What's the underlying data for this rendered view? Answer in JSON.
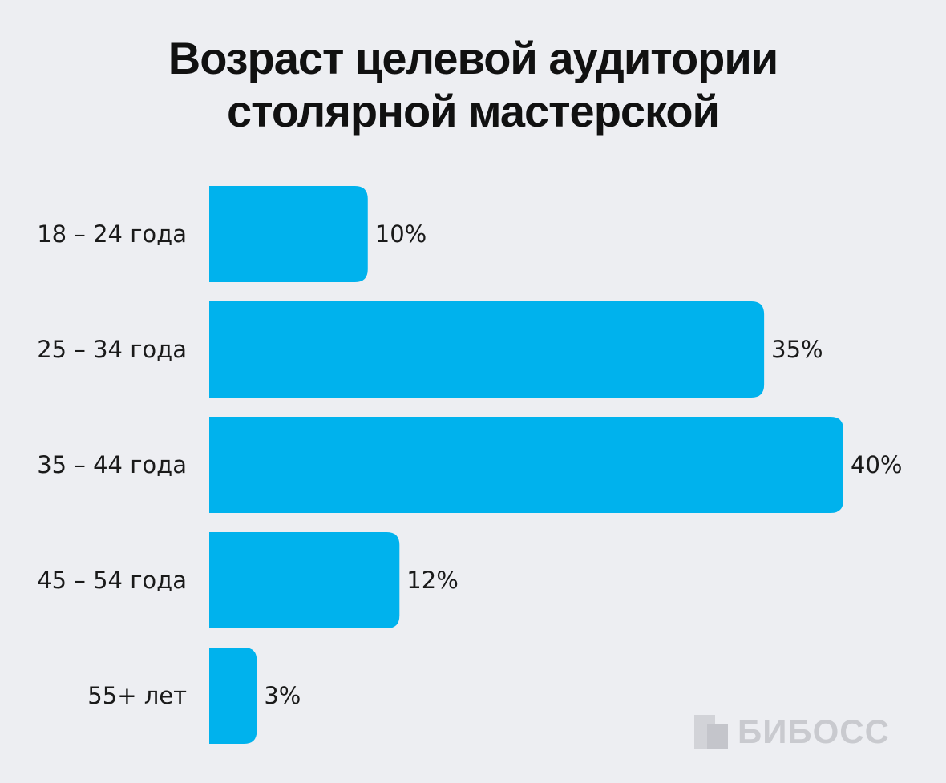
{
  "chart_data": {
    "type": "bar",
    "orientation": "horizontal",
    "title_lines": [
      "Возраст целевой аудитории",
      "столярной мастерской"
    ],
    "categories": [
      "18 – 24 года",
      "25 – 34 года",
      "35 – 44 года",
      "45 – 54 года",
      "55+ лет"
    ],
    "values": [
      10,
      35,
      40,
      12,
      3
    ],
    "value_labels": [
      "10%",
      "35%",
      "40%",
      "12%",
      "3%"
    ],
    "xlim": [
      0,
      40
    ],
    "grid": false,
    "legend": "none",
    "bar_color": "#00b2ed"
  },
  "branding": {
    "logo_text": "БИБОСС",
    "logo_icon": "biboss-logo-icon"
  }
}
